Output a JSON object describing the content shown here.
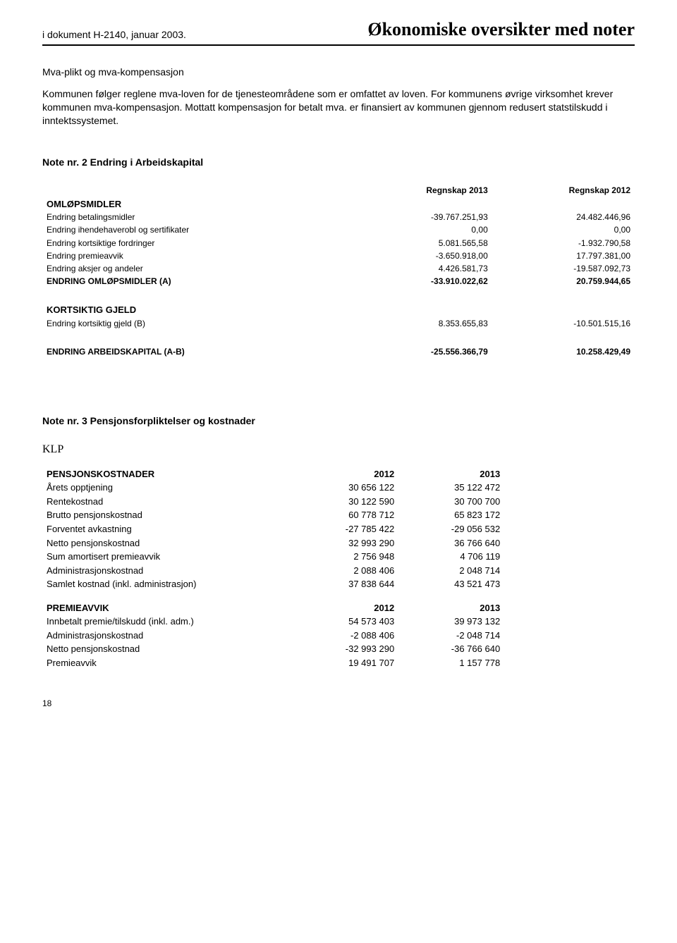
{
  "header": {
    "doc_ref": "i dokument H-2140, januar 2003.",
    "title": "Økonomiske oversikter med noter"
  },
  "mva": {
    "heading": "Mva-plikt og mva-kompensasjon",
    "para": "Kommunen følger reglene mva-loven for de tjenesteområdene som er omfattet av loven. For kommunens øvrige virksomhet krever kommunen mva-kompensasjon. Mottatt kompensasjon for betalt mva. er finansiert av kommunen gjennom redusert statstilskudd i inntektssystemet."
  },
  "note2": {
    "title": "Note nr. 2 Endring i Arbeidskapital",
    "col_headers": [
      "Regnskap 2013",
      "Regnskap 2012"
    ],
    "groups": [
      {
        "name": "OMLØPSMIDLER",
        "rows": [
          {
            "label": "Endring betalingsmidler",
            "c2013": "-39.767.251,93",
            "c2012": "24.482.446,96"
          },
          {
            "label": "Endring ihendehaverobl og sertifikater",
            "c2013": "0,00",
            "c2012": "0,00"
          },
          {
            "label": "Endring kortsiktige fordringer",
            "c2013": "5.081.565,58",
            "c2012": "-1.932.790,58"
          },
          {
            "label": "Endring premieavvik",
            "c2013": "-3.650.918,00",
            "c2012": "17.797.381,00"
          },
          {
            "label": "Endring aksjer og andeler",
            "c2013": "4.426.581,73",
            "c2012": "-19.587.092,73"
          },
          {
            "label": "ENDRING OMLØPSMIDLER (A)",
            "c2013": "-33.910.022,62",
            "c2012": "20.759.944,65",
            "bold": true
          }
        ]
      },
      {
        "name": "KORTSIKTIG GJELD",
        "rows": [
          {
            "label": "Endring kortsiktig gjeld (B)",
            "c2013": "8.353.655,83",
            "c2012": "-10.501.515,16"
          }
        ]
      }
    ],
    "total": {
      "label": "ENDRING ARBEIDSKAPITAL (A-B)",
      "c2013": "-25.556.366,79",
      "c2012": "10.258.429,49"
    }
  },
  "note3": {
    "title": "Note nr. 3 Pensjonsforpliktelser og kostnader",
    "klp": "KLP",
    "tables": [
      {
        "header": {
          "label": "PENSJONSKOSTNADER",
          "c1": "2012",
          "c2": "2013"
        },
        "rows": [
          {
            "label": "Årets opptjening",
            "c1": "30 656 122",
            "c2": "35 122 472"
          },
          {
            "label": "Rentekostnad",
            "c1": "30 122 590",
            "c2": "30 700 700"
          },
          {
            "label": "Brutto pensjonskostnad",
            "c1": "60 778 712",
            "c2": "65 823 172"
          },
          {
            "label": "Forventet avkastning",
            "c1": "-27 785 422",
            "c2": "-29 056 532"
          },
          {
            "label": "Netto pensjonskostnad",
            "c1": "32 993 290",
            "c2": "36 766 640"
          },
          {
            "label": "Sum amortisert premieavvik",
            "c1": "2 756 948",
            "c2": "4 706 119"
          },
          {
            "label": "Administrasjonskostnad",
            "c1": "2 088 406",
            "c2": "2 048 714"
          },
          {
            "label": "Samlet kostnad (inkl. administrasjon)",
            "c1": "37 838 644",
            "c2": "43 521 473"
          }
        ]
      },
      {
        "header": {
          "label": "PREMIEAVVIK",
          "c1": "2012",
          "c2": "2013"
        },
        "rows": [
          {
            "label": "Innbetalt premie/tilskudd (inkl. adm.)",
            "c1": "54 573 403",
            "c2": "39 973 132"
          },
          {
            "label": "Administrasjonskostnad",
            "c1": "-2 088 406",
            "c2": "-2 048 714"
          },
          {
            "label": "Netto pensjonskostnad",
            "c1": "-32 993 290",
            "c2": "-36 766 640"
          },
          {
            "label": "Premieavvik",
            "c1": "19 491 707",
            "c2": "1 157 778"
          }
        ]
      }
    ]
  },
  "page_number": "18"
}
